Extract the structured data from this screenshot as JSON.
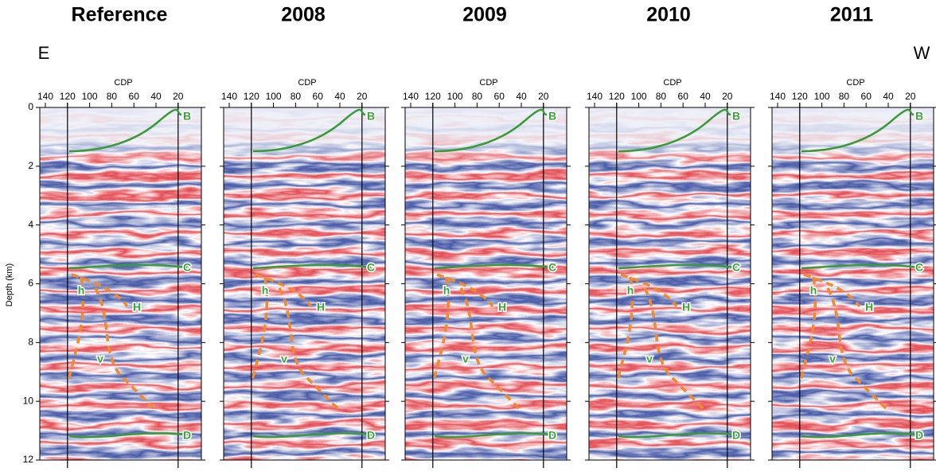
{
  "header": {
    "left": "E",
    "right": "W"
  },
  "panels": [
    {
      "title": "Reference"
    },
    {
      "title": "2008"
    },
    {
      "title": "2009"
    },
    {
      "title": "2010"
    },
    {
      "title": "2011"
    }
  ],
  "axes": {
    "x_label": "CDP",
    "x_ticks": [
      "140",
      "120",
      "100",
      "80",
      "60",
      "40",
      "20"
    ],
    "y_label": "Depth (km)",
    "y_ticks": [
      "0",
      "2",
      "4",
      "6",
      "8",
      "10",
      "12"
    ]
  },
  "labels": {
    "B": "B",
    "C": "C",
    "D": "D",
    "H": "H",
    "h": "h",
    "v": "v"
  }
}
